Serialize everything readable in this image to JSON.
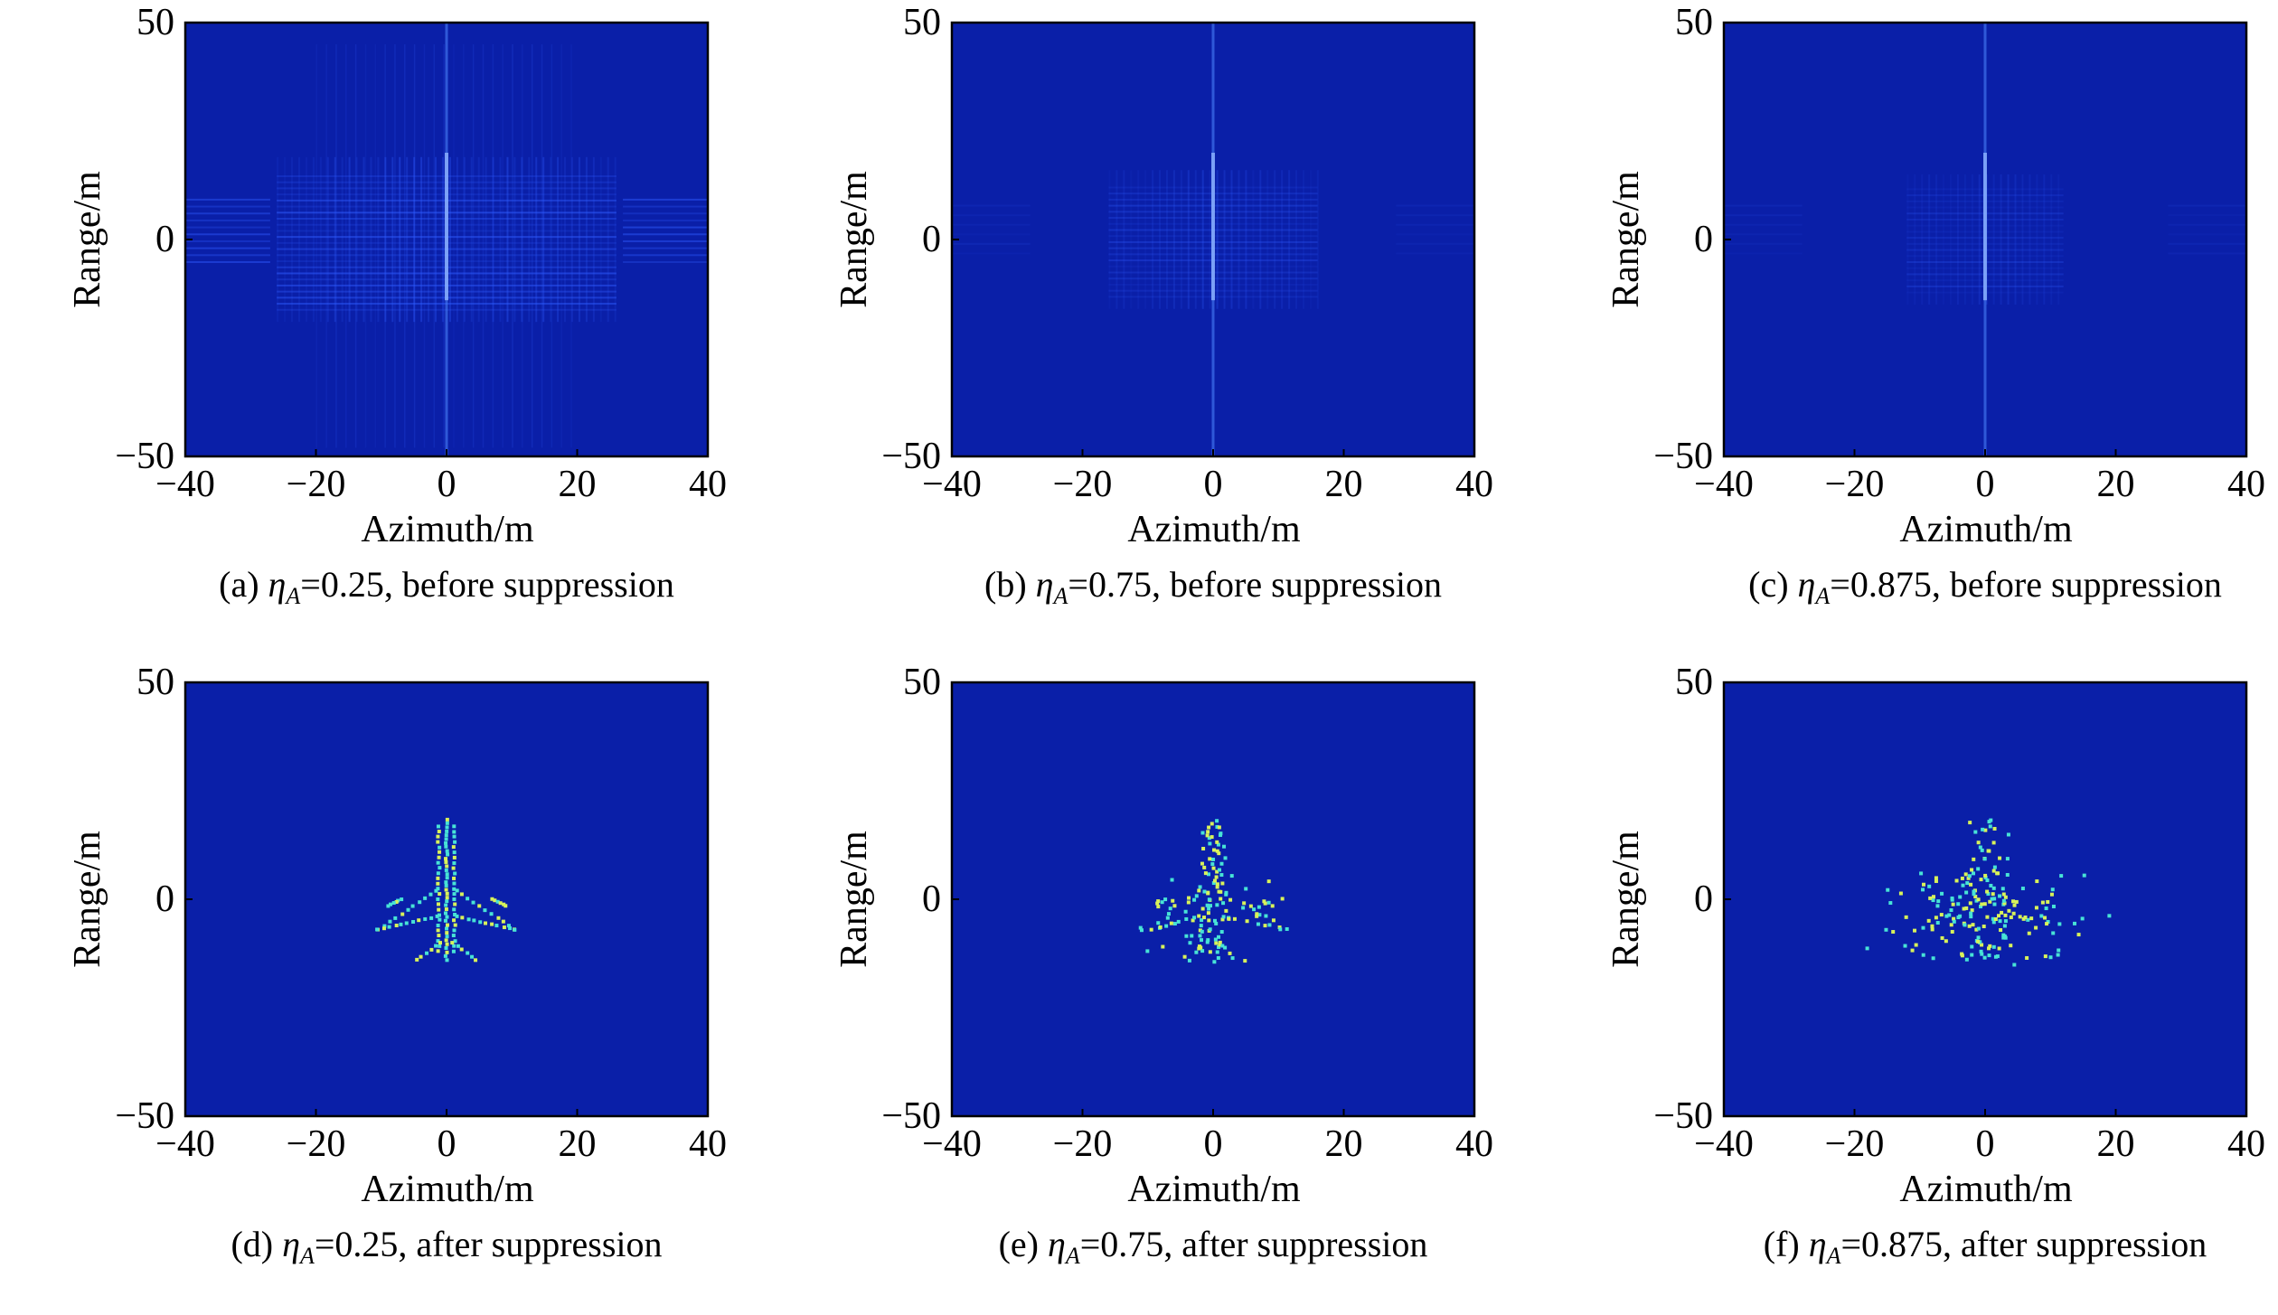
{
  "colors": {
    "background": "#0a1fa8",
    "sidelobe_light": "#2f5cff",
    "sidelobe_strong": "#4f86ff",
    "scatter_cyan": "#47e3d6",
    "scatter_yellow": "#d8f25a",
    "axis": "#000000"
  },
  "chart_data": [
    {
      "id": "a",
      "type": "heatmap",
      "stage": "before",
      "xlabel": "Azimuth/m",
      "ylabel": "Range/m",
      "xlim": [
        -40,
        40
      ],
      "ylim": [
        -50,
        50
      ],
      "xticks": [
        "−40",
        "−20",
        "0",
        "20",
        "40"
      ],
      "yticks": [
        "50",
        "0",
        "−50"
      ],
      "caption": {
        "prefix": "(a) ",
        "symbol": "η",
        "subscript": "A",
        "text": "=0.25, before suppression"
      },
      "eta_A": 0.25
    },
    {
      "id": "b",
      "type": "heatmap",
      "stage": "before",
      "xlabel": "Azimuth/m",
      "ylabel": "Range/m",
      "xlim": [
        -40,
        40
      ],
      "ylim": [
        -50,
        50
      ],
      "xticks": [
        "−40",
        "−20",
        "0",
        "20",
        "40"
      ],
      "yticks": [
        "50",
        "0",
        "−50"
      ],
      "caption": {
        "prefix": "(b) ",
        "symbol": "η",
        "subscript": "A",
        "text": "=0.75, before suppression"
      },
      "eta_A": 0.75
    },
    {
      "id": "c",
      "type": "heatmap",
      "stage": "before",
      "xlabel": "Azimuth/m",
      "ylabel": "Range/m",
      "xlim": [
        -40,
        40
      ],
      "ylim": [
        -50,
        50
      ],
      "xticks": [
        "−40",
        "−20",
        "0",
        "20",
        "40"
      ],
      "yticks": [
        "50",
        "0",
        "−50"
      ],
      "caption": {
        "prefix": "(c) ",
        "symbol": "η",
        "subscript": "A",
        "text": "=0.875, before suppression"
      },
      "eta_A": 0.875
    },
    {
      "id": "d",
      "type": "heatmap",
      "stage": "after",
      "xlabel": "Azimuth/m",
      "ylabel": "Range/m",
      "xlim": [
        -40,
        40
      ],
      "ylim": [
        -50,
        50
      ],
      "xticks": [
        "−40",
        "−20",
        "0",
        "20",
        "40"
      ],
      "yticks": [
        "50",
        "0",
        "−50"
      ],
      "caption": {
        "prefix": "(d) ",
        "symbol": "η",
        "subscript": "A",
        "text": "=0.25, after suppression"
      },
      "eta_A": 0.25
    },
    {
      "id": "e",
      "type": "heatmap",
      "stage": "after",
      "xlabel": "Azimuth/m",
      "ylabel": "Range/m",
      "xlim": [
        -40,
        40
      ],
      "ylim": [
        -50,
        50
      ],
      "xticks": [
        "−40",
        "−20",
        "0",
        "20",
        "40"
      ],
      "yticks": [
        "50",
        "0",
        "−50"
      ],
      "caption": {
        "prefix": "(e) ",
        "symbol": "η",
        "subscript": "A",
        "text": "=0.75, after suppression"
      },
      "eta_A": 0.75
    },
    {
      "id": "f",
      "type": "heatmap",
      "stage": "after",
      "xlabel": "Azimuth/m",
      "ylabel": "Range/m",
      "xlim": [
        -40,
        40
      ],
      "ylim": [
        -50,
        50
      ],
      "xticks": [
        "−40",
        "−20",
        "0",
        "20",
        "40"
      ],
      "yticks": [
        "50",
        "0",
        "−50"
      ],
      "caption": {
        "prefix": "(f) ",
        "symbol": "η",
        "subscript": "A",
        "text": "=0.875, after suppression"
      },
      "eta_A": 0.875
    }
  ]
}
